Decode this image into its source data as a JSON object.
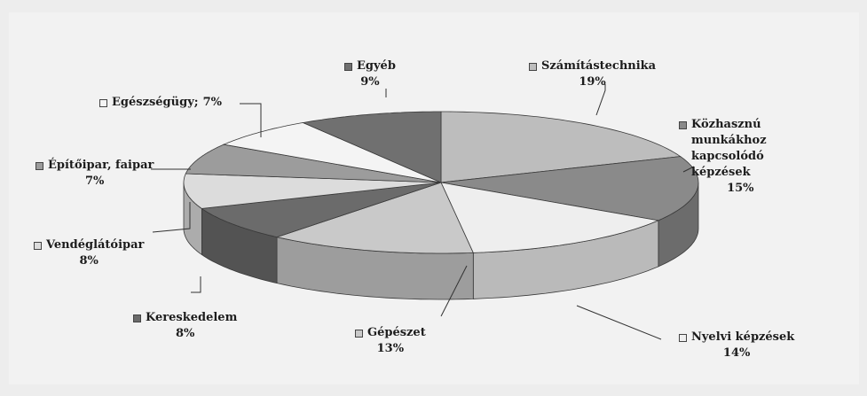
{
  "chart_data": {
    "type": "pie",
    "style": "3d exploded-style pie, grayscale",
    "legend": "none (callout labels)",
    "slices": [
      {
        "label": "Számítástechnika",
        "value": 19,
        "percent": "19%",
        "color": "#bdbdbd"
      },
      {
        "label": "Közhasznú munkákhoz kapcsolódó képzések",
        "label_lines": [
          "Közhasznú",
          "munkákhoz",
          "kapcsolódó",
          "képzések"
        ],
        "value": 15,
        "percent": "15%",
        "color": "#8a8a8a"
      },
      {
        "label": "Nyelvi képzések",
        "value": 14,
        "percent": "14%",
        "color": "#eeeeee"
      },
      {
        "label": "Gépészet",
        "value": 13,
        "percent": "13%",
        "color": "#c9c9c9"
      },
      {
        "label": "Kereskedelem",
        "value": 8,
        "percent": "8%",
        "color": "#6b6b6b"
      },
      {
        "label": "Vendéglátóipar",
        "value": 8,
        "percent": "8%",
        "color": "#dcdcdc"
      },
      {
        "label": "Építőipar, faipar",
        "value": 7,
        "percent": "7%",
        "color": "#9c9c9c"
      },
      {
        "label": "Egészségügy",
        "value": 7,
        "percent": "7%",
        "color": "#f4f4f4"
      },
      {
        "label": "Egyéb",
        "value": 9,
        "percent": "9%",
        "color": "#707070"
      }
    ]
  }
}
